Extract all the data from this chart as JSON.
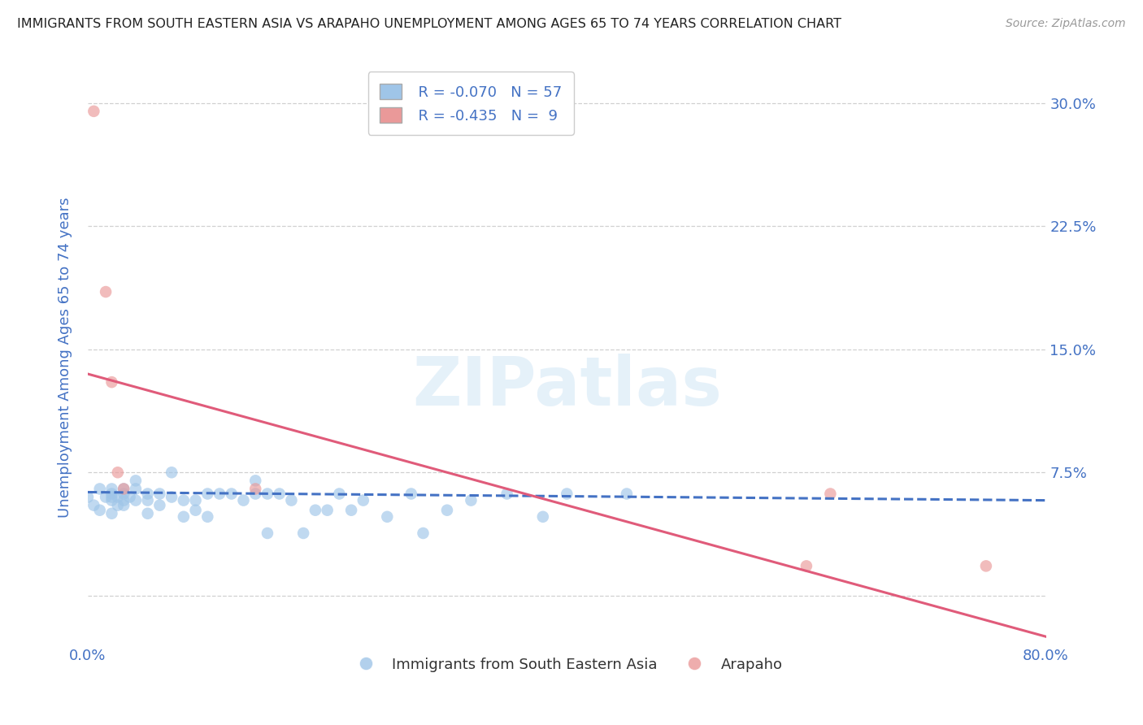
{
  "title": "IMMIGRANTS FROM SOUTH EASTERN ASIA VS ARAPAHO UNEMPLOYMENT AMONG AGES 65 TO 74 YEARS CORRELATION CHART",
  "source": "Source: ZipAtlas.com",
  "ylabel": "Unemployment Among Ages 65 to 74 years",
  "xlim": [
    0.0,
    0.8
  ],
  "ylim": [
    -0.03,
    0.32
  ],
  "ytick_positions": [
    0.0,
    0.075,
    0.15,
    0.225,
    0.3
  ],
  "yticklabels": [
    "",
    "7.5%",
    "15.0%",
    "22.5%",
    "30.0%"
  ],
  "background_color": "#ffffff",
  "grid_color": "#d0d0d0",
  "watermark": "ZIPatlas",
  "blue_scatter_x": [
    0.0,
    0.005,
    0.01,
    0.01,
    0.015,
    0.02,
    0.02,
    0.02,
    0.02,
    0.02,
    0.025,
    0.025,
    0.03,
    0.03,
    0.03,
    0.03,
    0.035,
    0.04,
    0.04,
    0.04,
    0.05,
    0.05,
    0.05,
    0.06,
    0.06,
    0.07,
    0.07,
    0.08,
    0.08,
    0.09,
    0.09,
    0.1,
    0.1,
    0.11,
    0.12,
    0.13,
    0.14,
    0.14,
    0.15,
    0.15,
    0.16,
    0.17,
    0.18,
    0.19,
    0.2,
    0.21,
    0.22,
    0.23,
    0.25,
    0.27,
    0.28,
    0.3,
    0.32,
    0.35,
    0.38,
    0.4,
    0.45
  ],
  "blue_scatter_y": [
    0.06,
    0.055,
    0.065,
    0.052,
    0.06,
    0.062,
    0.058,
    0.05,
    0.065,
    0.06,
    0.06,
    0.055,
    0.058,
    0.062,
    0.055,
    0.065,
    0.06,
    0.065,
    0.07,
    0.058,
    0.062,
    0.058,
    0.05,
    0.062,
    0.055,
    0.075,
    0.06,
    0.048,
    0.058,
    0.058,
    0.052,
    0.062,
    0.048,
    0.062,
    0.062,
    0.058,
    0.07,
    0.062,
    0.062,
    0.038,
    0.062,
    0.058,
    0.038,
    0.052,
    0.052,
    0.062,
    0.052,
    0.058,
    0.048,
    0.062,
    0.038,
    0.052,
    0.058,
    0.062,
    0.048,
    0.062,
    0.062
  ],
  "pink_scatter_x": [
    0.005,
    0.015,
    0.02,
    0.025,
    0.03,
    0.14,
    0.6,
    0.62,
    0.75
  ],
  "pink_scatter_y": [
    0.295,
    0.185,
    0.13,
    0.075,
    0.065,
    0.065,
    0.018,
    0.062,
    0.018
  ],
  "blue_line_x": [
    0.0,
    0.8
  ],
  "blue_line_y": [
    0.063,
    0.058
  ],
  "blue_line_color": "#4472c4",
  "blue_line_style": "--",
  "pink_line_x": [
    0.0,
    0.8
  ],
  "pink_line_y": [
    0.135,
    -0.025
  ],
  "pink_line_color": "#e05b7a",
  "pink_line_style": "-",
  "blue_color": "#9fc5e8",
  "pink_color": "#ea9999",
  "scatter_alpha": 0.65,
  "scatter_size": 110,
  "legend_R_blue": "-0.070",
  "legend_N_blue": "57",
  "legend_R_pink": "-0.435",
  "legend_N_pink": "9",
  "legend_label_blue": "Immigrants from South Eastern Asia",
  "legend_label_pink": "Arapaho",
  "title_color": "#222222",
  "tick_label_color": "#4472c4"
}
